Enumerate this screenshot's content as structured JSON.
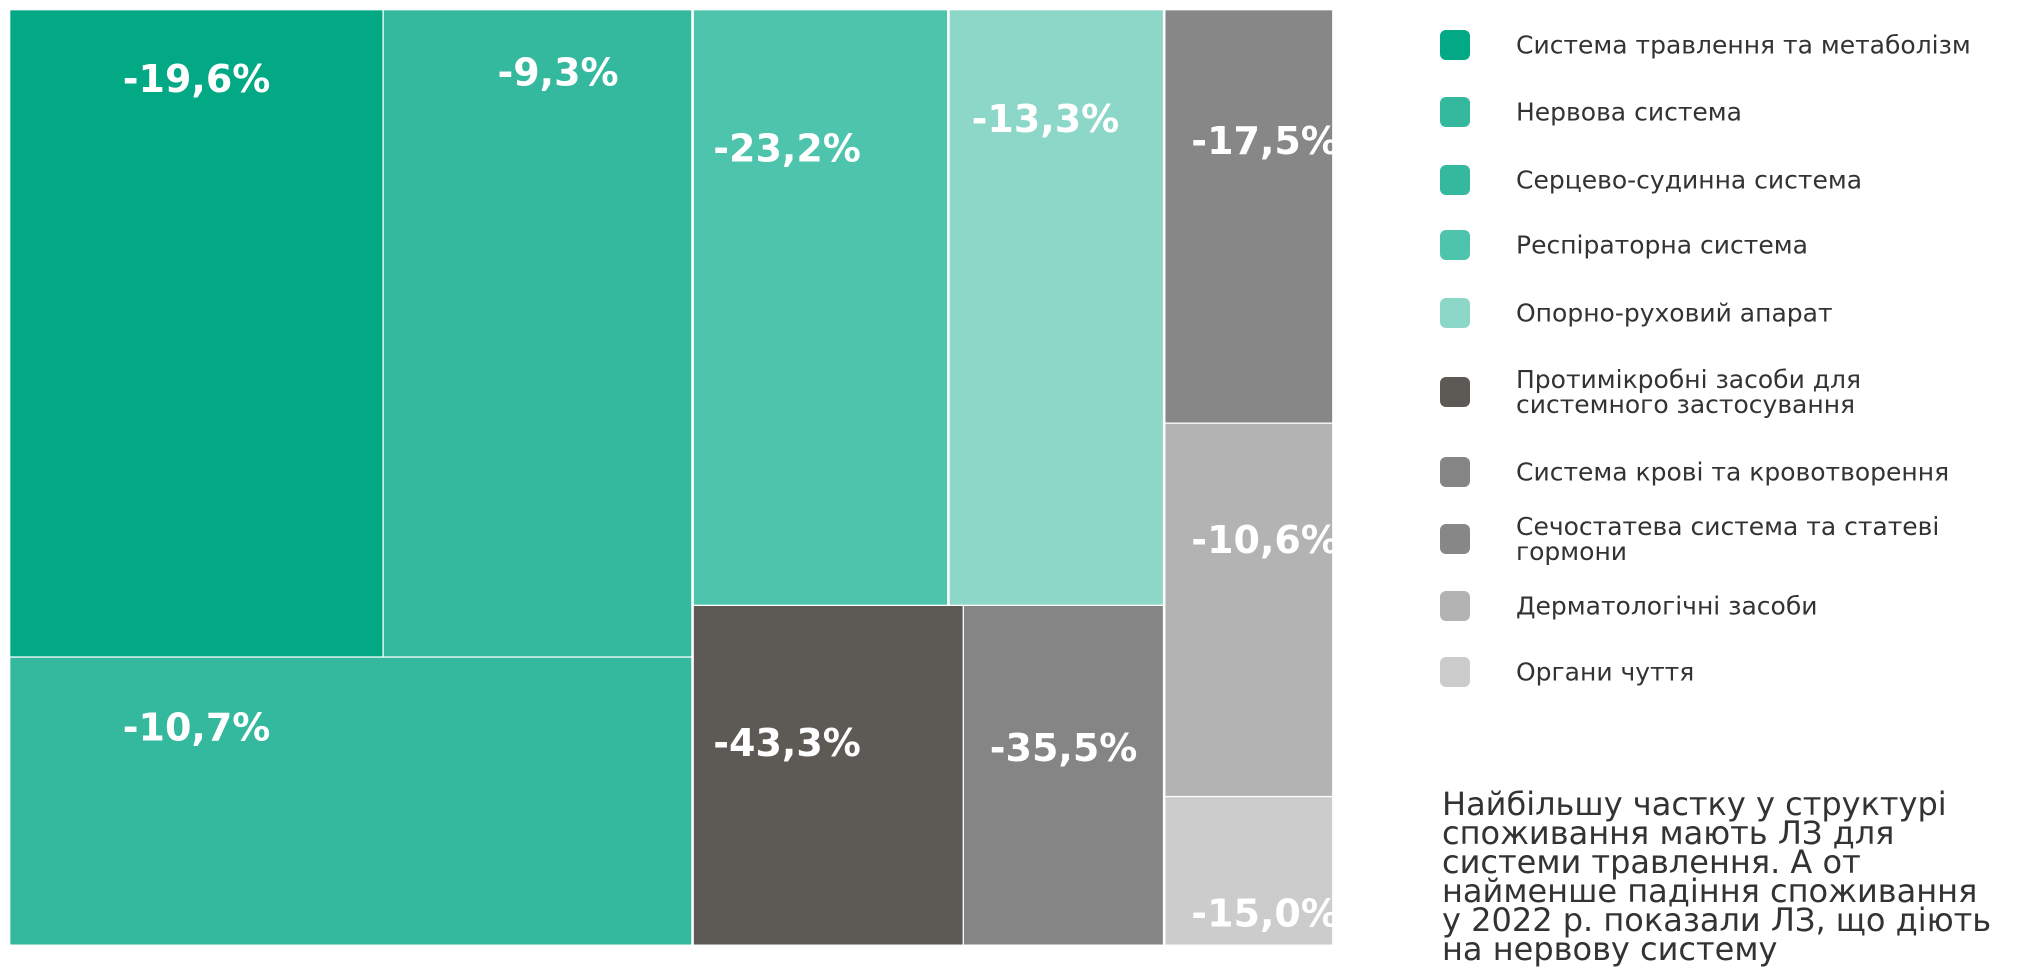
{
  "chart_data": {
    "type": "treemap",
    "categories": [
      "Система травлення та метаболізм",
      "Нервова система",
      "Серцево-судинна система",
      "Респіраторна система",
      "Опорно-руховий апарат",
      "Протимікробні засоби для\nсистемного застосування",
      "Система крові та кровотворення",
      "Сечостатева система та статеві гормони",
      "Дерматологічні засоби",
      "Органи чуття"
    ],
    "values": [
      -19.6,
      -9.3,
      -10.7,
      -23.2,
      -13.3,
      -43.3,
      -35.5,
      -17.5,
      -10.6,
      -15.0
    ],
    "value_labels": [
      "-19,6%",
      "-9,3%",
      "-10,7%",
      "-23,2%",
      "-13,3%",
      "-43,3%",
      "-35,5%",
      "-17,5%",
      "-10,6%",
      "-15,0%"
    ],
    "colors": [
      "#03a884",
      "#35b99e",
      "#35b99e",
      "#4fc4ad",
      "#8dd7c8",
      "#5d5954",
      "#858585",
      "#878787",
      "#b3b3b3",
      "#cccccc"
    ],
    "annotation": "Найбільшу частку у структурі споживання мають ЛЗ для системи травлення. А от найменше падіння споживання у 2022 р. показали ЛЗ, що діють на нервову систему"
  }
}
